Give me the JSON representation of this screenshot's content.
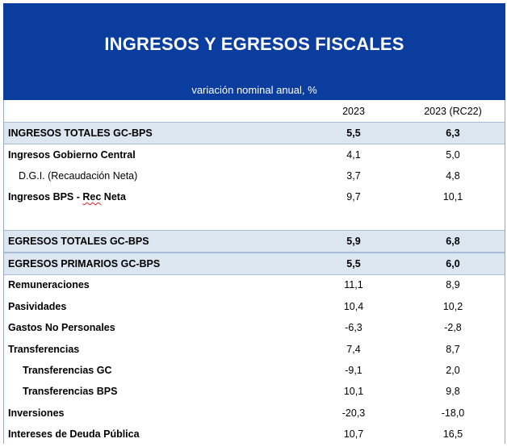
{
  "title": "INGRESOS Y EGRESOS FISCALES",
  "subtitle": "variación nominal anual, %",
  "columns": [
    "2023",
    "2023 (RC22)"
  ],
  "rows": [
    {
      "label": "INGRESOS TOTALES GC-BPS",
      "v1": "5,5",
      "v2": "6,3"
    },
    {
      "label": "Ingresos Gobierno Central",
      "v1": "4,1",
      "v2": "5,0"
    },
    {
      "label": "D.G.I. (Recaudación Neta)",
      "v1": "3,7",
      "v2": "4,8"
    },
    {
      "label_a": "Ingresos BPS - ",
      "label_b": "Rec",
      "label_c": " Neta",
      "v1": "9,7",
      "v2": "10,1"
    },
    {
      "label": "EGRESOS TOTALES GC-BPS",
      "v1": "5,9",
      "v2": "6,8"
    },
    {
      "label": "EGRESOS PRIMARIOS GC-BPS",
      "v1": "5,5",
      "v2": "6,0"
    },
    {
      "label": "Remuneraciones",
      "v1": "11,1",
      "v2": "8,9"
    },
    {
      "label": "Pasividades",
      "v1": "10,4",
      "v2": "10,2"
    },
    {
      "label": "Gastos No Personales",
      "v1": "-6,3",
      "v2": "-2,8"
    },
    {
      "label": "Transferencias",
      "v1": "7,4",
      "v2": "8,7"
    },
    {
      "label": "Transferencias GC",
      "v1": "-9,1",
      "v2": "2,0"
    },
    {
      "label": "Transferencias BPS",
      "v1": "10,1",
      "v2": "9,8"
    },
    {
      "label": "Inversiones",
      "v1": "-20,3",
      "v2": "-18,0"
    },
    {
      "label": "Intereses de Deuda Pública",
      "v1": "10,7",
      "v2": "16,5"
    }
  ]
}
